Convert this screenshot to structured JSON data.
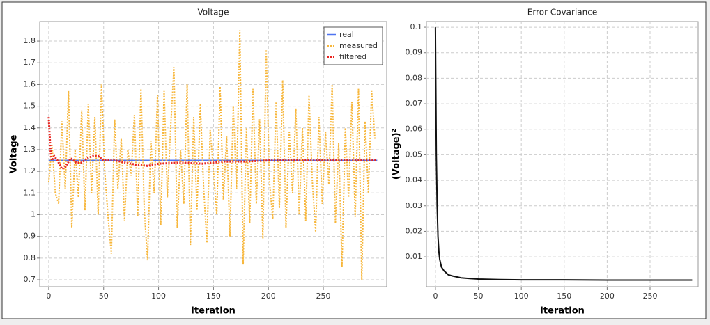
{
  "chart_data": [
    {
      "type": "line",
      "title": "Voltage",
      "x_label": "Iteration",
      "y_label": "Voltage",
      "xlim": [
        -8.2,
        307.7
      ],
      "ylim": [
        0.668,
        1.89
      ],
      "xticks": [
        0,
        50,
        100,
        150,
        200,
        250
      ],
      "yticks": [
        0.7,
        0.8,
        0.9,
        1,
        1.1,
        1.2,
        1.3,
        1.4,
        1.5,
        1.6,
        1.7,
        1.8
      ],
      "grid": true,
      "legend": "top-right",
      "series": [
        {
          "name": "real",
          "color": "#4f74f0",
          "style": "solid",
          "x": [
            0,
            299
          ],
          "values": [
            1.25,
            1.25
          ]
        },
        {
          "name": "measured",
          "color": "#f7b63a",
          "style": "dotted",
          "x": [
            0,
            3,
            6,
            9,
            12,
            15,
            18,
            21,
            24,
            27,
            30,
            33,
            36,
            39,
            42,
            45,
            48,
            51,
            54,
            57,
            60,
            63,
            66,
            69,
            72,
            75,
            78,
            81,
            84,
            87,
            90,
            93,
            96,
            99,
            102,
            105,
            108,
            111,
            114,
            117,
            120,
            123,
            126,
            129,
            132,
            135,
            138,
            141,
            144,
            147,
            150,
            153,
            156,
            159,
            162,
            165,
            168,
            171,
            174,
            177,
            180,
            183,
            186,
            189,
            192,
            195,
            198,
            201,
            204,
            207,
            210,
            213,
            216,
            219,
            222,
            225,
            228,
            231,
            234,
            237,
            240,
            243,
            246,
            249,
            252,
            255,
            258,
            261,
            264,
            267,
            270,
            273,
            276,
            279,
            282,
            285,
            288,
            291,
            294,
            297
          ],
          "values": [
            1.15,
            1.32,
            1.1,
            1.05,
            1.43,
            1.12,
            1.57,
            0.94,
            1.3,
            1.08,
            1.48,
            1.02,
            1.51,
            1.1,
            1.45,
            1.0,
            1.6,
            1.2,
            0.99,
            0.82,
            1.44,
            1.12,
            1.35,
            0.97,
            1.3,
            1.18,
            1.46,
            0.99,
            1.58,
            1.02,
            0.79,
            1.34,
            1.1,
            1.55,
            0.95,
            1.57,
            1.08,
            1.4,
            1.68,
            0.94,
            1.3,
            1.05,
            1.6,
            0.86,
            1.45,
            1.02,
            1.51,
            1.13,
            0.87,
            1.39,
            1.2,
            1.0,
            1.59,
            1.07,
            1.36,
            0.9,
            1.5,
            1.12,
            1.85,
            0.77,
            1.4,
            0.96,
            1.58,
            1.05,
            1.44,
            0.89,
            1.76,
            1.15,
            0.98,
            1.52,
            1.03,
            1.62,
            0.94,
            1.38,
            1.1,
            1.49,
            1.0,
            1.4,
            0.97,
            1.55,
            1.15,
            0.92,
            1.45,
            1.05,
            1.38,
            1.14,
            1.6,
            0.96,
            1.33,
            0.76,
            1.4,
            1.08,
            1.52,
            0.99,
            1.58,
            0.7,
            1.43,
            1.1,
            1.57,
            1.35
          ]
        },
        {
          "name": "filtered",
          "color": "#e8231f",
          "style": "dotted",
          "x": [
            0,
            1,
            2,
            3,
            5,
            8,
            12,
            15,
            20,
            25,
            30,
            35,
            40,
            45,
            50,
            60,
            70,
            80,
            90,
            100,
            120,
            140,
            160,
            180,
            200,
            250,
            299
          ],
          "values": [
            1.45,
            1.35,
            1.27,
            1.25,
            1.27,
            1.25,
            1.21,
            1.22,
            1.26,
            1.24,
            1.24,
            1.26,
            1.27,
            1.27,
            1.25,
            1.25,
            1.24,
            1.23,
            1.225,
            1.235,
            1.24,
            1.235,
            1.245,
            1.245,
            1.25,
            1.25,
            1.25
          ]
        }
      ]
    },
    {
      "type": "line",
      "title": "Error Covariance",
      "x_label": "Iteration",
      "y_label": "(Voltage)²",
      "xlim": [
        -10.5,
        306
      ],
      "ylim": [
        -0.0017,
        0.1022
      ],
      "xticks": [
        0,
        50,
        100,
        150,
        200,
        250
      ],
      "yticks": [
        0.01,
        0.02,
        0.03,
        0.04,
        0.05,
        0.06,
        0.07,
        0.08,
        0.09,
        0.1
      ],
      "grid": true,
      "series": [
        {
          "color": "#111111",
          "style": "solid",
          "x": [
            0,
            1,
            2,
            3,
            4,
            5,
            7,
            10,
            15,
            20,
            30,
            40,
            50,
            75,
            100,
            150,
            200,
            250,
            299
          ],
          "values": [
            0.1,
            0.05,
            0.03,
            0.018,
            0.012,
            0.009,
            0.006,
            0.0045,
            0.003,
            0.0025,
            0.0018,
            0.0015,
            0.0013,
            0.0011,
            0.001,
            0.001,
            0.0009,
            0.0009,
            0.0009
          ]
        }
      ]
    }
  ]
}
